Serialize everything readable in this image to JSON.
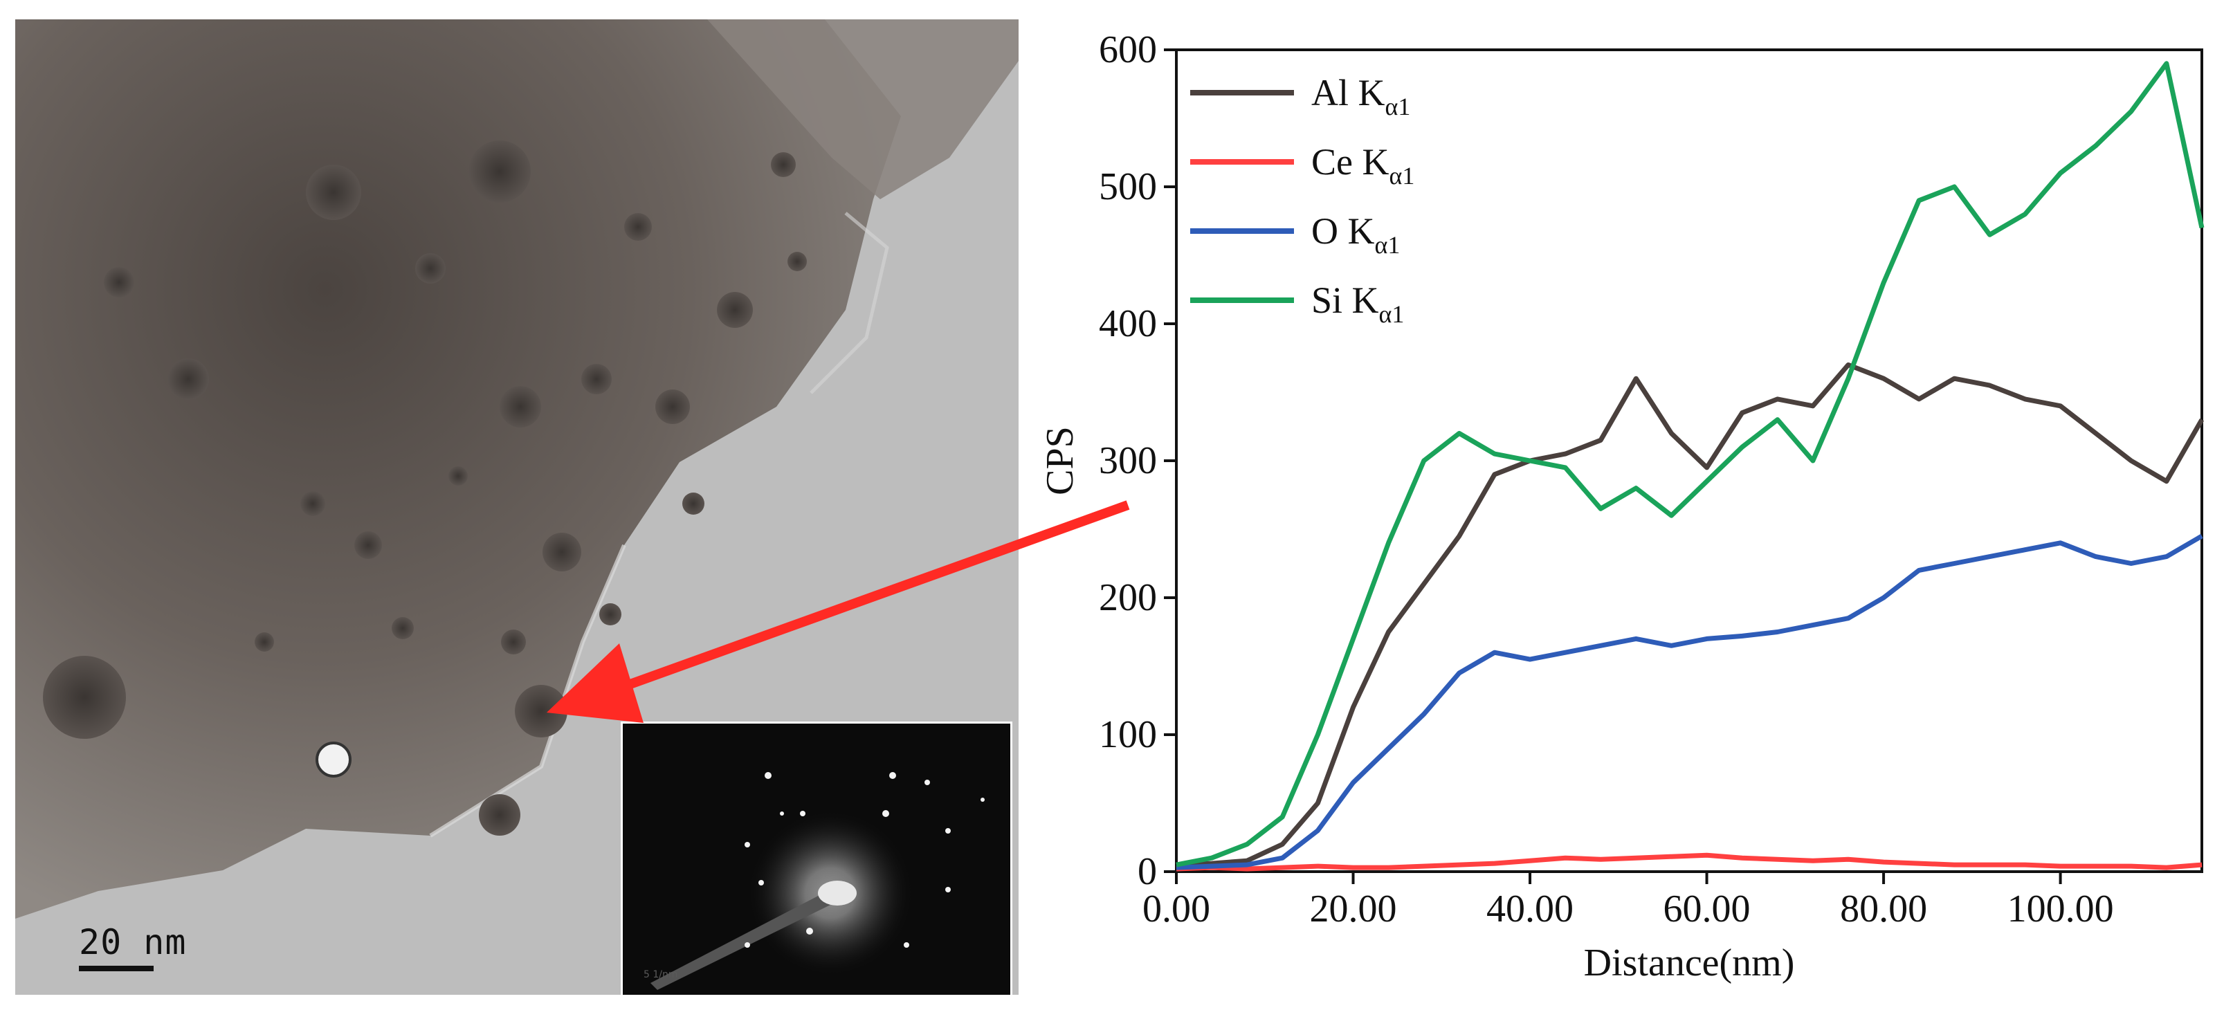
{
  "tem_image": {
    "scale_bar_label": "20 nm",
    "inset_caption": "5 1/nm",
    "colors": {
      "background": "#bdbdbd",
      "dark_region": "#4a4340",
      "particle": "#3a3633",
      "arrow": "#ff2a24"
    }
  },
  "chart_data": {
    "type": "line",
    "title": "",
    "xlabel": "Distance(nm)",
    "ylabel": "CPS",
    "xlim": [
      0,
      116
    ],
    "ylim": [
      0,
      600
    ],
    "x_ticks": [
      "0.00",
      "20.00",
      "40.00",
      "60.00",
      "80.00",
      "100.00"
    ],
    "x_tick_values": [
      0,
      20,
      40,
      60,
      80,
      100
    ],
    "y_ticks": [
      "0",
      "100",
      "200",
      "300",
      "400",
      "500",
      "600"
    ],
    "y_tick_values": [
      0,
      100,
      200,
      300,
      400,
      500,
      600
    ],
    "legend_position": "top-left",
    "x": [
      0,
      4,
      8,
      12,
      16,
      20,
      24,
      28,
      32,
      36,
      40,
      44,
      48,
      52,
      56,
      60,
      64,
      68,
      72,
      76,
      80,
      84,
      88,
      92,
      96,
      100,
      104,
      108,
      112,
      116
    ],
    "series": [
      {
        "name": "Al K",
        "sub": "α1",
        "color": "#4a403d",
        "values": [
          5,
          6,
          8,
          20,
          50,
          120,
          175,
          210,
          245,
          290,
          300,
          305,
          315,
          360,
          320,
          295,
          335,
          345,
          340,
          370,
          360,
          345,
          360,
          355,
          345,
          340,
          320,
          300,
          285,
          330
        ]
      },
      {
        "name": "Ce K",
        "sub": "α1",
        "color": "#ff4040",
        "values": [
          2,
          3,
          2,
          3,
          4,
          3,
          3,
          4,
          5,
          6,
          8,
          10,
          9,
          10,
          11,
          12,
          10,
          9,
          8,
          9,
          7,
          6,
          5,
          5,
          5,
          4,
          4,
          4,
          3,
          5
        ]
      },
      {
        "name": "O  K",
        "sub": "α1",
        "color": "#2e5cb8",
        "values": [
          3,
          4,
          5,
          10,
          30,
          65,
          90,
          115,
          145,
          160,
          155,
          160,
          165,
          170,
          165,
          170,
          172,
          175,
          180,
          185,
          200,
          220,
          225,
          230,
          235,
          240,
          230,
          225,
          230,
          245
        ]
      },
      {
        "name": "Si  K",
        "sub": "α1",
        "color": "#1aa35a",
        "values": [
          5,
          10,
          20,
          40,
          100,
          170,
          240,
          300,
          320,
          305,
          300,
          295,
          265,
          280,
          260,
          285,
          310,
          330,
          300,
          360,
          430,
          490,
          500,
          465,
          480,
          510,
          530,
          555,
          590,
          470
        ]
      }
    ]
  }
}
